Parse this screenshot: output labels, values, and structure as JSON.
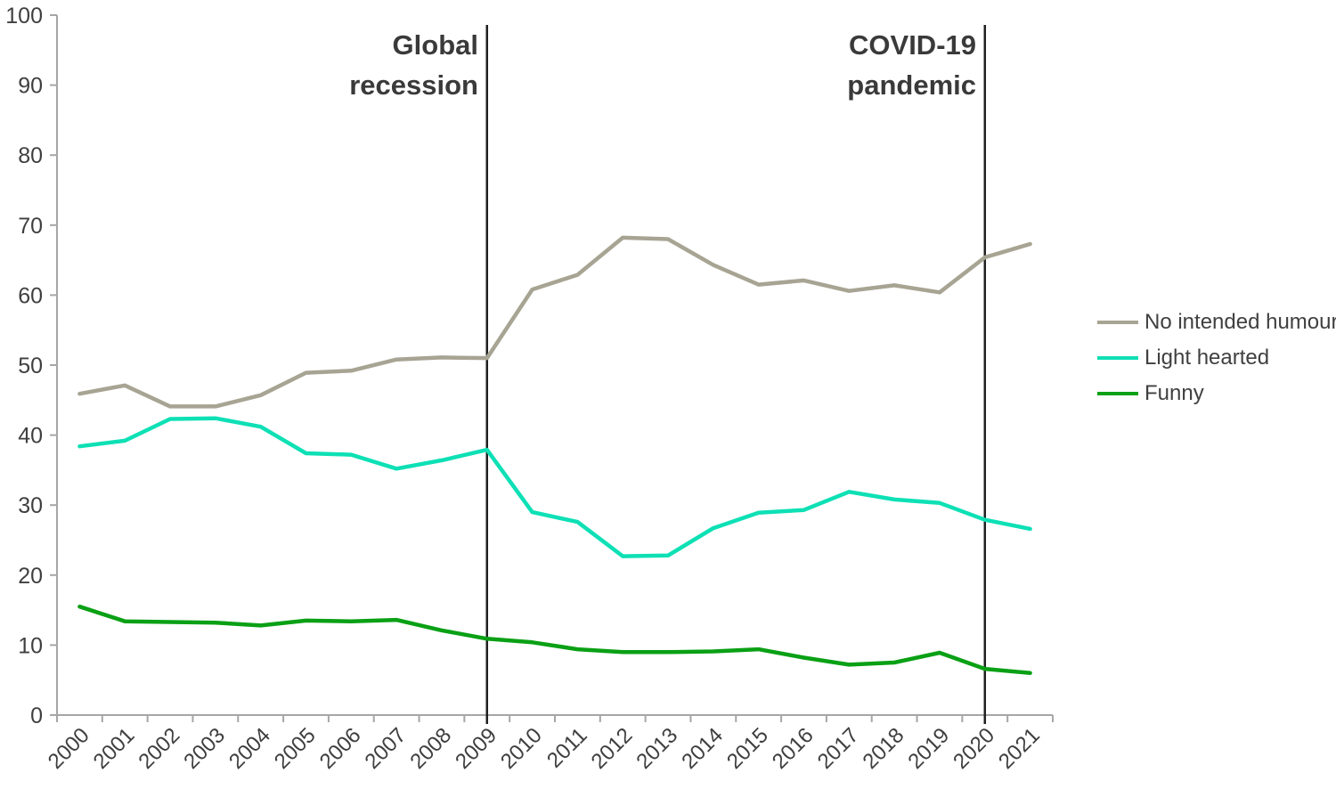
{
  "chart_data": {
    "type": "line",
    "title": "",
    "xlabel": "",
    "ylabel": "",
    "x": [
      "2000",
      "2001",
      "2002",
      "2003",
      "2004",
      "2005",
      "2006",
      "2007",
      "2008",
      "2009",
      "2010",
      "2011",
      "2012",
      "2013",
      "2014",
      "2015",
      "2016",
      "2017",
      "2018",
      "2019",
      "2020",
      "2021"
    ],
    "series": [
      {
        "name": "No intended humour",
        "color": "#a7a493",
        "values": [
          45.9,
          47.1,
          44.1,
          44.1,
          45.7,
          48.9,
          49.2,
          50.8,
          51.1,
          51.0,
          60.8,
          62.9,
          68.2,
          68.0,
          64.3,
          61.5,
          62.1,
          60.6,
          61.4,
          60.4,
          65.4,
          67.3
        ]
      },
      {
        "name": "Light hearted",
        "color": "#0ee0b5",
        "values": [
          38.4,
          39.2,
          42.3,
          42.4,
          41.2,
          37.4,
          37.2,
          35.2,
          36.4,
          37.9,
          29.0,
          27.6,
          22.7,
          22.8,
          26.7,
          28.9,
          29.3,
          31.9,
          30.8,
          30.3,
          27.9,
          26.6
        ]
      },
      {
        "name": "Funny",
        "color": "#0aa015",
        "values": [
          15.5,
          13.4,
          13.3,
          13.2,
          12.8,
          13.5,
          13.4,
          13.6,
          12.1,
          10.9,
          10.4,
          9.4,
          9.0,
          9.0,
          9.1,
          9.4,
          8.2,
          7.2,
          7.5,
          8.9,
          6.6,
          6.0
        ]
      }
    ],
    "ylim": [
      0,
      100
    ],
    "yticks": [
      0,
      10,
      20,
      30,
      40,
      50,
      60,
      70,
      80,
      90,
      100
    ],
    "grid": "off",
    "legend_position": "right",
    "annotations": [
      {
        "label": "Global recession",
        "line1": "Global",
        "line2": "recession",
        "year": "2009"
      },
      {
        "label": "COVID-19 pandemic",
        "line1": "COVID-19",
        "line2": "pandemic",
        "year": "2020"
      }
    ]
  }
}
